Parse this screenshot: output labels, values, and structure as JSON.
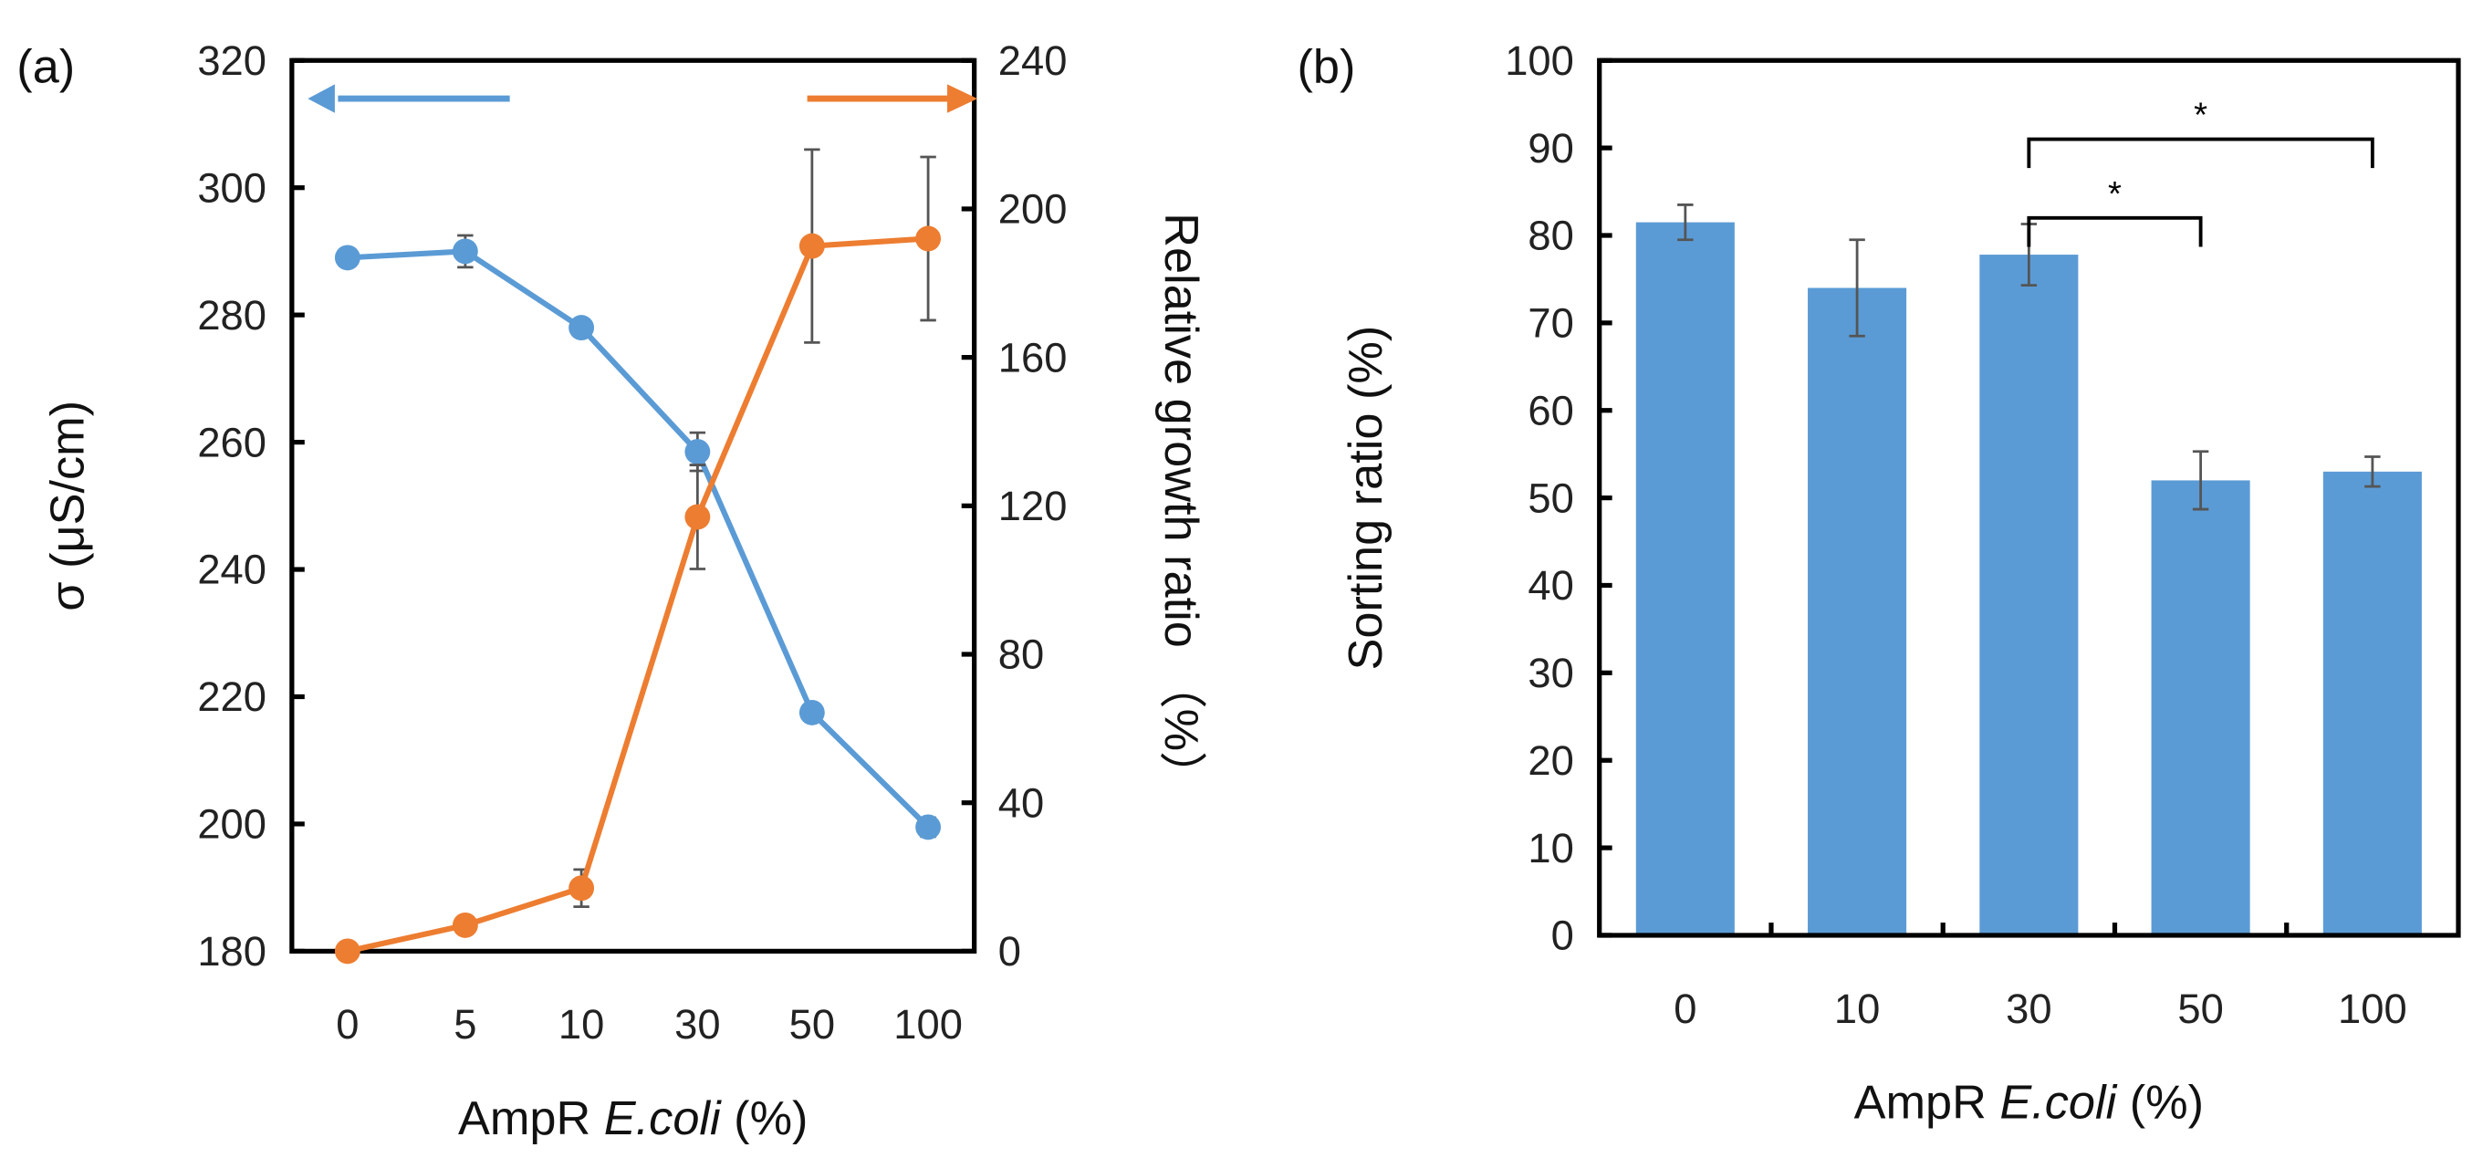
{
  "chart_data": [
    {
      "type": "line",
      "panel_label": "(a)",
      "categories": [
        "0",
        "5",
        "10",
        "30",
        "50",
        "100"
      ],
      "xlabel_prefix": "AmpR ",
      "xlabel_italic": "E.coli",
      "xlabel_suffix": " (%)",
      "ylabel": "σ (μS/cm)",
      "y2label": "Relative growth ratio （%）",
      "ylim": [
        180,
        320
      ],
      "yticks": [
        180,
        200,
        220,
        240,
        260,
        280,
        300,
        320
      ],
      "y2lim": [
        0,
        240
      ],
      "y2ticks": [
        0,
        40,
        80,
        120,
        160,
        200,
        240
      ],
      "series": [
        {
          "name": "σ (μS/cm)",
          "axis": "left",
          "color": "#5b9bd5",
          "values": [
            289,
            290,
            278,
            258.5,
            217.5,
            199.5
          ],
          "errors": [
            1,
            2.5,
            1.2,
            3,
            1,
            1.5
          ]
        },
        {
          "name": "Relative growth ratio (%)",
          "axis": "right",
          "color": "#ed7d31",
          "values": [
            0,
            7,
            17,
            117,
            190,
            192
          ],
          "errors": [
            0.5,
            2,
            5,
            14,
            26,
            22
          ]
        }
      ],
      "legend": "arrows indicate axis: blue → left, orange → right",
      "grid": false
    },
    {
      "type": "bar",
      "panel_label": "(b)",
      "categories": [
        "0",
        "10",
        "30",
        "50",
        "100"
      ],
      "values": [
        81.5,
        74,
        77.8,
        52,
        53
      ],
      "errors": [
        2,
        5.5,
        3.5,
        3.3,
        1.7
      ],
      "color": "#5b9bd5",
      "xlabel_prefix": "AmpR ",
      "xlabel_italic": "E.coli",
      "xlabel_suffix": " (%)",
      "ylabel": "Sorting ratio (%)",
      "ylim": [
        0,
        100
      ],
      "yticks": [
        0,
        10,
        20,
        30,
        40,
        50,
        60,
        70,
        80,
        90,
        100
      ],
      "significance": [
        {
          "from": "30",
          "to": "50",
          "label": "*"
        },
        {
          "from": "30",
          "to": "100",
          "label": "*"
        }
      ],
      "grid": false
    }
  ]
}
